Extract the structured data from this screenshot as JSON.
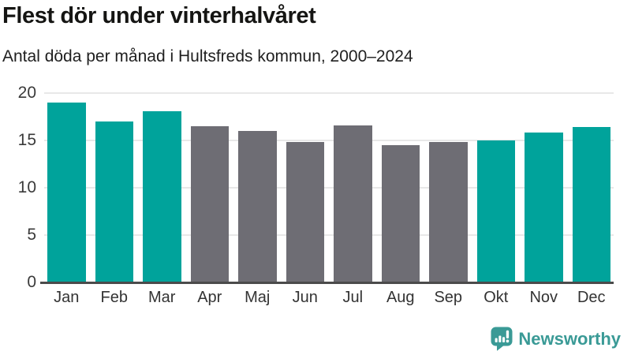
{
  "header": {
    "title": "Flest dör under vinterhalvåret",
    "subtitle": "Antal döda per månad i Hultsfreds kommun, 2000–2024"
  },
  "chart_data": {
    "type": "bar",
    "title": "Flest dör under vinterhalvåret",
    "subtitle": "Antal döda per månad i Hultsfreds kommun, 2000–2024",
    "categories": [
      "Jan",
      "Feb",
      "Mar",
      "Apr",
      "Maj",
      "Jun",
      "Jul",
      "Aug",
      "Sep",
      "Okt",
      "Nov",
      "Dec"
    ],
    "values": [
      19.0,
      17.0,
      18.1,
      16.5,
      16.0,
      14.8,
      16.6,
      14.5,
      14.8,
      15.0,
      15.8,
      16.4
    ],
    "bar_groups": [
      "winter",
      "winter",
      "winter",
      "summer",
      "summer",
      "summer",
      "summer",
      "summer",
      "summer",
      "winter",
      "winter",
      "winter"
    ],
    "colors": {
      "winter": "#00a39b",
      "summer": "#6e6d74"
    },
    "xlabel": "",
    "ylabel": "",
    "ylim": [
      0,
      20
    ],
    "yticks": [
      0,
      5,
      10,
      15,
      20
    ],
    "grid": true,
    "legend": false,
    "gridline_color": "#e8e8e8",
    "axis_line_color": "#4b4b4b",
    "tick_label_color": "#3a3a3a"
  },
  "footer": {
    "brand": "Newsworthy",
    "brand_color": "#3a9a96",
    "logo_icon": "newsworthy-speech-bubble-bar-chart-icon"
  }
}
